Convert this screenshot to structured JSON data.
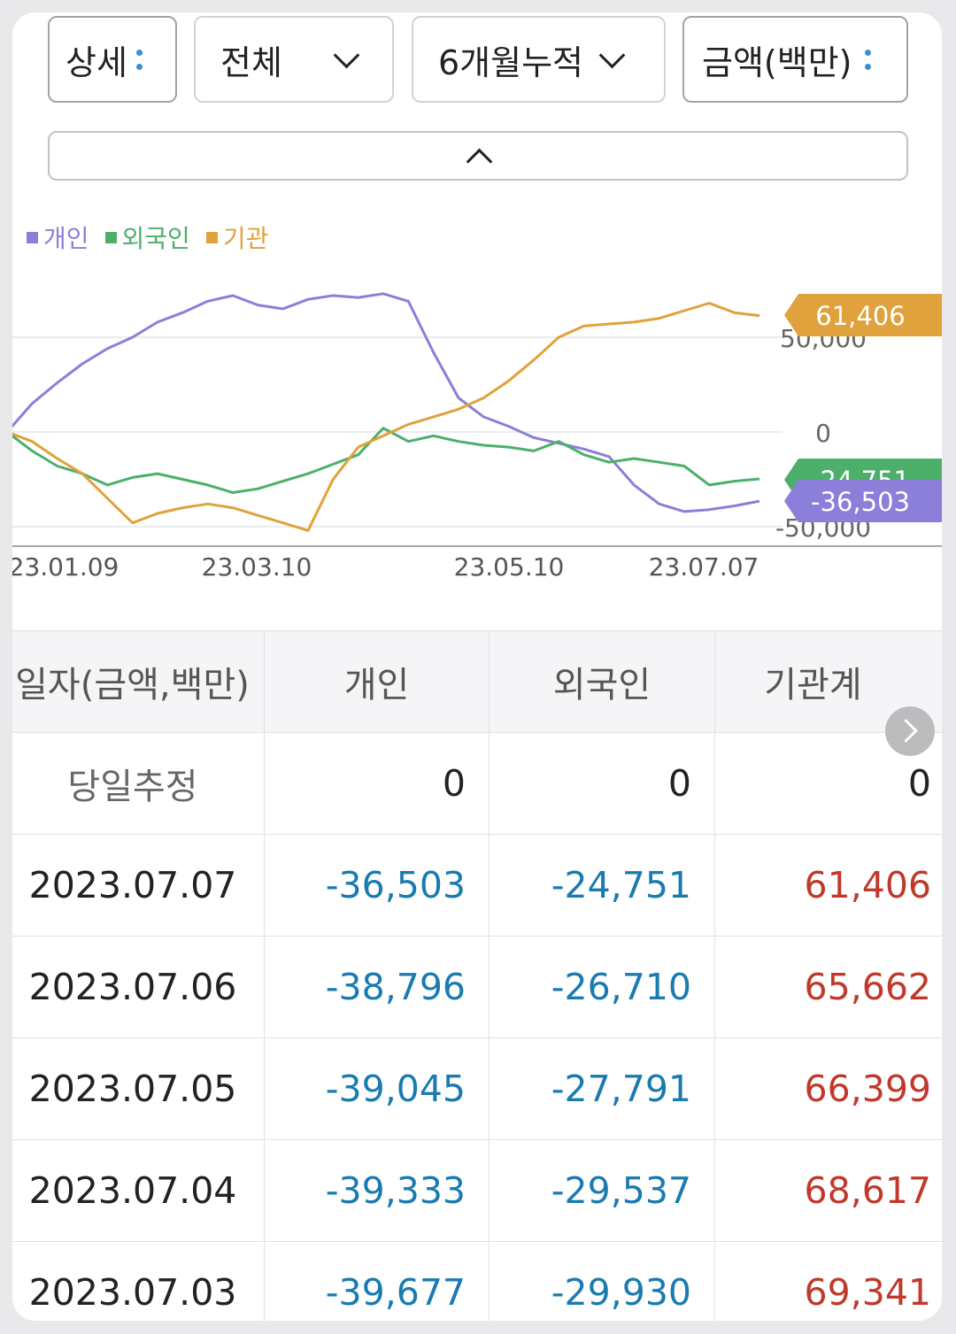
{
  "filters": [
    {
      "label": "상세",
      "icon": "more-vert-icon"
    },
    {
      "label": "전체",
      "icon": "chevron-down-icon"
    },
    {
      "label": "6개월누적",
      "icon": "chevron-down-icon"
    },
    {
      "label": "금액(백만)",
      "icon": "more-vert-icon"
    }
  ],
  "legend": [
    {
      "name": "개인",
      "color": "#8b7fd9"
    },
    {
      "name": "외국인",
      "color": "#4caf6a"
    },
    {
      "name": "기관",
      "color": "#e0a23c"
    }
  ],
  "chart_data": {
    "type": "line",
    "x_labels": [
      "23.01.09",
      "23.03.10",
      "23.05.10",
      "23.07.07"
    ],
    "y_ticks": [
      50000,
      0,
      -50000
    ],
    "y_tick_labels": [
      "50,000",
      "0",
      "-50,000"
    ],
    "ylim": [
      -55000,
      85000
    ],
    "grid": true,
    "legend_position": "top-left",
    "series": [
      {
        "name": "개인",
        "color": "#8b7fd9",
        "end_label": "-36,503",
        "values": [
          0,
          15000,
          26000,
          36000,
          44000,
          50000,
          58000,
          63000,
          69000,
          72000,
          67000,
          65000,
          70000,
          72000,
          71000,
          73000,
          69000,
          42000,
          18000,
          8000,
          3000,
          -3000,
          -6000,
          -9000,
          -13000,
          -28000,
          -38000,
          -42000,
          -41000,
          -39000,
          -36503
        ]
      },
      {
        "name": "외국인",
        "color": "#4caf6a",
        "end_label": "-24,751",
        "values": [
          0,
          -10000,
          -18000,
          -22000,
          -28000,
          -24000,
          -22000,
          -25000,
          -28000,
          -32000,
          -30000,
          -26000,
          -22000,
          -17000,
          -12000,
          2000,
          -5000,
          -2000,
          -5000,
          -7000,
          -8000,
          -10000,
          -5000,
          -12000,
          -16000,
          -14000,
          -16000,
          -18000,
          -28000,
          -26000,
          -24751
        ]
      },
      {
        "name": "기관",
        "color": "#e0a23c",
        "end_label": "61,406",
        "values": [
          0,
          -5000,
          -14000,
          -22000,
          -35000,
          -48000,
          -43000,
          -40000,
          -38000,
          -40000,
          -44000,
          -48000,
          -52000,
          -25000,
          -8000,
          -2000,
          4000,
          8000,
          12000,
          18000,
          27000,
          38000,
          50000,
          56000,
          57000,
          58000,
          60000,
          64000,
          68000,
          63000,
          61406
        ]
      }
    ]
  },
  "table": {
    "headers": [
      "일자(금액,백만)",
      "개인",
      "외국인",
      "기관계"
    ],
    "rows": [
      {
        "date": "당일추정",
        "c1": "0",
        "c2": "0",
        "c3": "0"
      },
      {
        "date": "2023.07.07",
        "c1": "-36,503",
        "c2": "-24,751",
        "c3": "61,406"
      },
      {
        "date": "2023.07.06",
        "c1": "-38,796",
        "c2": "-26,710",
        "c3": "65,662"
      },
      {
        "date": "2023.07.05",
        "c1": "-39,045",
        "c2": "-27,791",
        "c3": "66,399"
      },
      {
        "date": "2023.07.04",
        "c1": "-39,333",
        "c2": "-29,537",
        "c3": "68,617"
      },
      {
        "date": "2023.07.03",
        "c1": "-39,677",
        "c2": "-29,930",
        "c3": "69,341"
      }
    ]
  }
}
